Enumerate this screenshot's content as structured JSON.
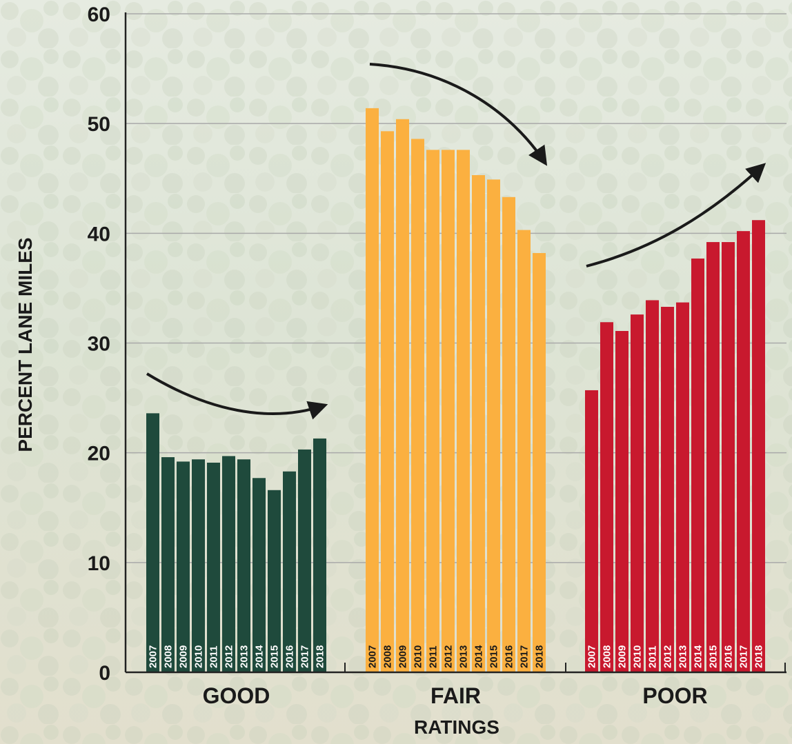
{
  "chart_data": {
    "type": "bar",
    "title": "",
    "xlabel": "RATINGS",
    "ylabel": "PERCENT LANE MILES",
    "ylim": [
      0,
      60
    ],
    "yticks": [
      0,
      10,
      20,
      30,
      40,
      50,
      60
    ],
    "grid": true,
    "categories": [
      "GOOD",
      "FAIR",
      "POOR"
    ],
    "years": [
      "2007",
      "2008",
      "2009",
      "2010",
      "2011",
      "2012",
      "2013",
      "2014",
      "2015",
      "2016",
      "2017",
      "2018"
    ],
    "groups": [
      {
        "label": "GOOD",
        "color": "#1f4a3c",
        "year_label_color": "#ffffff",
        "values": [
          23.6,
          19.6,
          19.2,
          19.4,
          19.1,
          19.7,
          19.4,
          17.7,
          16.6,
          18.3,
          20.3,
          21.3
        ],
        "trend": "down-then-up"
      },
      {
        "label": "FAIR",
        "color": "#fbb040",
        "year_label_color": "#1a1a1a",
        "values": [
          51.4,
          49.3,
          50.4,
          48.6,
          47.6,
          47.6,
          47.6,
          45.3,
          44.9,
          43.3,
          40.3,
          38.2
        ],
        "trend": "down"
      },
      {
        "label": "POOR",
        "color": "#c8192e",
        "year_label_color": "#ffffff",
        "values": [
          25.7,
          31.9,
          31.1,
          32.6,
          33.9,
          33.3,
          33.7,
          37.7,
          39.2,
          39.2,
          40.2,
          41.2
        ],
        "trend": "up"
      }
    ],
    "colors": {
      "grid": "#a9a9a9",
      "axis": "#222222",
      "arrow": "#1a1a1a"
    }
  }
}
